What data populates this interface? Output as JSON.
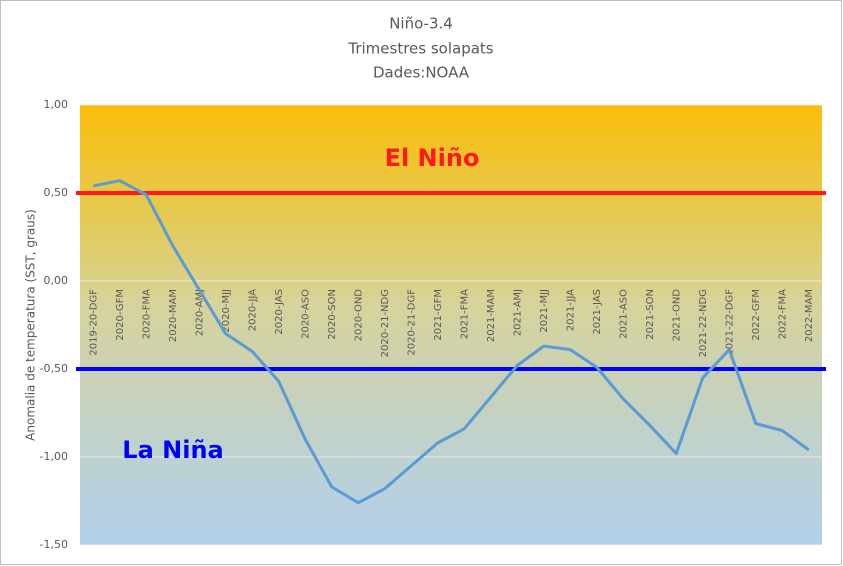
{
  "chart_data": {
    "type": "line",
    "title": "Niño-3.4",
    "subtitle": [
      "Trimestres solapats",
      "Dades:NOAA"
    ],
    "y_label": "Anomalia de temperatura (SST, graus)",
    "categories": [
      "2019-20-DGF",
      "2020-GFM",
      "2020-FMA",
      "2020-MAM",
      "2020-AMJ",
      "2020-MJJ",
      "2020-JJA",
      "2020-JAS",
      "2020-ASO",
      "2020-SON",
      "2020-OND",
      "2020-21-NDG",
      "2020-21-DGF",
      "2021-GFM",
      "2021-FMA",
      "2021-MAM",
      "2021-AMJ",
      "2021-MJJ",
      "2021-JJA",
      "2021-JAS",
      "2021-ASO",
      "2021-SON",
      "2021-OND",
      "2021-22-NDG",
      "2021-22-DGF",
      "2022-GFM",
      "2022-FMA",
      "2022-MAM"
    ],
    "series": [
      {
        "color": "#5b9bd5",
        "values": [
          0.54,
          0.57,
          0.49,
          0.2,
          -0.05,
          -0.3,
          -0.4,
          -0.57,
          -0.9,
          -1.17,
          -1.26,
          -1.18,
          -1.05,
          -0.92,
          -0.84,
          -0.66,
          -0.48,
          -0.37,
          -0.39,
          -0.49,
          -0.67,
          -0.82,
          -0.98,
          -0.55,
          -0.39,
          -0.81,
          -0.85,
          -0.96
        ]
      }
    ],
    "ylim": [
      -1.5,
      1
    ],
    "yticks": [
      {
        "value": -1.5,
        "label": "-1,50"
      },
      {
        "value": -1,
        "label": "-1,00"
      },
      {
        "value": -0.5,
        "label": "-0,50"
      },
      {
        "value": 0,
        "label": "0,00"
      },
      {
        "value": 0.5,
        "label": "0,50"
      },
      {
        "value": 1,
        "label": "1,00"
      }
    ],
    "grid": true,
    "reference_lines": [
      {
        "value": 0.5,
        "color": "#ff1a1a",
        "label": "El Niño"
      },
      {
        "value": -0.5,
        "color": "#0000ff",
        "label": "La Niña"
      }
    ]
  }
}
